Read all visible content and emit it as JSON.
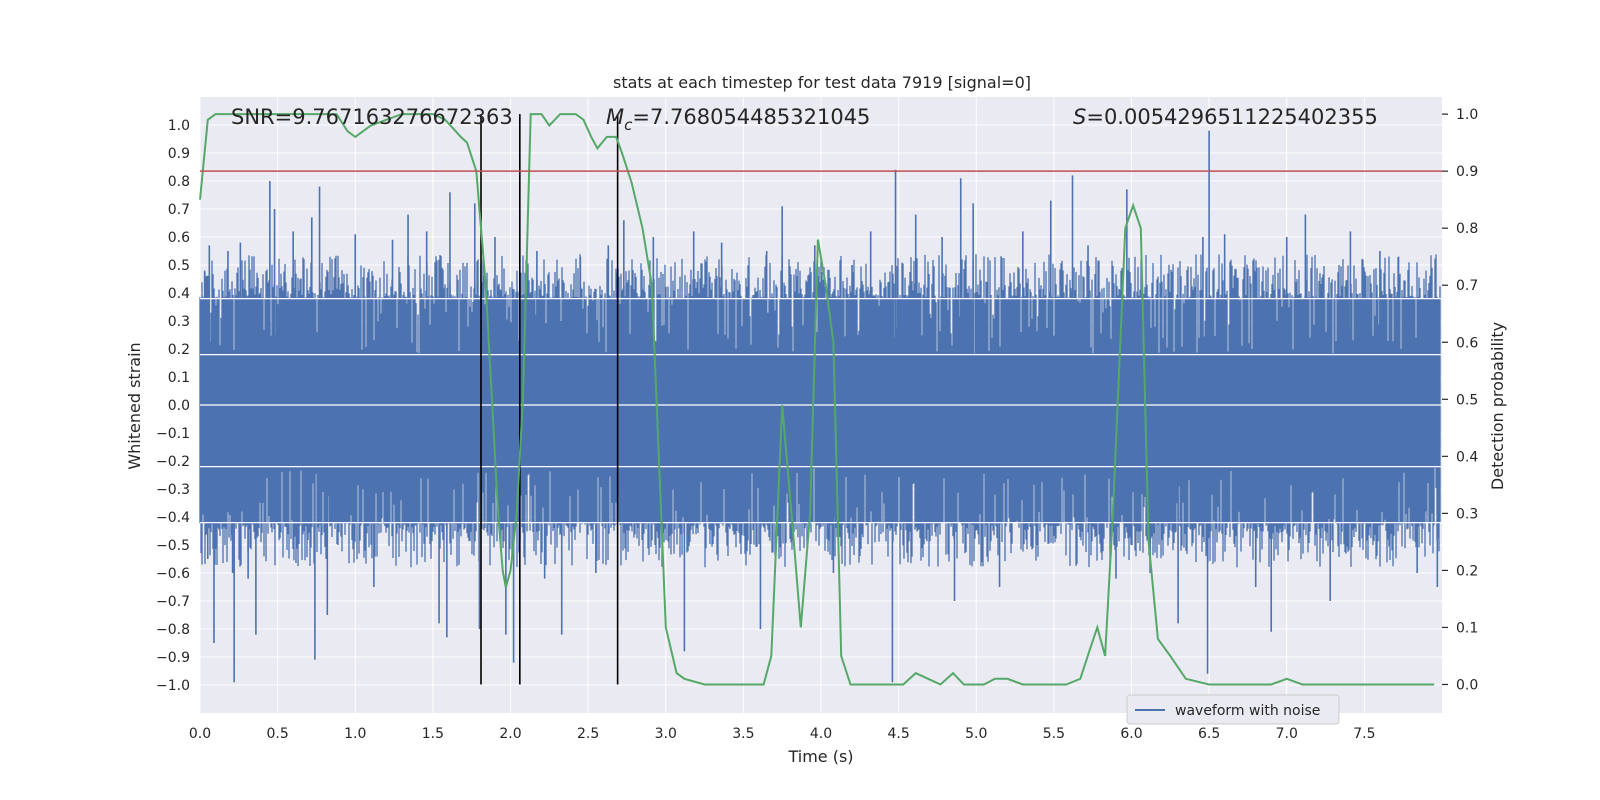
{
  "chart_data": {
    "type": "line",
    "title": "stats at each timestep for test data 7919 [signal=0]",
    "xlabel": "Time (s)",
    "ylabel": "Whitened strain",
    "y2label": "Detection probability",
    "xlim": [
      0.0,
      8.0
    ],
    "ylim": [
      -1.1,
      1.1
    ],
    "y2lim": [
      -0.05,
      1.03
    ],
    "x_ticks": [
      0.0,
      0.5,
      1.0,
      1.5,
      2.0,
      2.5,
      3.0,
      3.5,
      4.0,
      4.5,
      5.0,
      5.5,
      6.0,
      6.5,
      7.0,
      7.5
    ],
    "x_tick_labels": [
      "0.0",
      "0.5",
      "1.0",
      "1.5",
      "2.0",
      "2.5",
      "3.0",
      "3.5",
      "4.0",
      "4.5",
      "5.0",
      "5.5",
      "6.0",
      "6.5",
      "7.0",
      "7.5"
    ],
    "y_ticks": [
      1.0,
      0.9,
      0.8,
      0.7,
      0.6,
      0.5,
      0.4,
      0.3,
      0.2,
      0.1,
      0.0,
      -0.1,
      -0.2,
      -0.3,
      -0.4,
      -0.5,
      -0.6,
      -0.7,
      -0.8,
      -0.9,
      -1.0
    ],
    "y_tick_labels": [
      "1.0",
      "0.9",
      "0.8",
      "0.7",
      "0.6",
      "0.5",
      "0.4",
      "0.3",
      "0.2",
      "0.1",
      "0.0",
      "−0.1",
      "−0.2",
      "−0.3",
      "−0.4",
      "−0.5",
      "−0.6",
      "−0.7",
      "−0.8",
      "−0.9",
      "−1.0"
    ],
    "y2_ticks": [
      1.0,
      0.9,
      0.8,
      0.7,
      0.6,
      0.5,
      0.4,
      0.3,
      0.2,
      0.1,
      0.0
    ],
    "y2_tick_labels": [
      "1.0",
      "0.9",
      "0.8",
      "0.7",
      "0.6",
      "0.5",
      "0.4",
      "0.3",
      "0.2",
      "0.1",
      "0.0"
    ],
    "annotations": {
      "snr": "SNR=9.767163276672363",
      "mc_symbol": "M",
      "mc_sub": "c",
      "mc_value": "=7.768054485321045",
      "s_symbol": "S",
      "s_value": "=0.0054296511225402355"
    },
    "legend": {
      "label": "waveform with noise",
      "placement": "lower-right"
    },
    "threshold": {
      "y2": 0.9,
      "color": "#c44e52"
    },
    "vlines_x": [
      1.81,
      2.06,
      2.69
    ],
    "waveform": {
      "name": "waveform with noise",
      "color": "#4c72b0",
      "x_range": [
        0.0,
        7.99
      ],
      "band_env": [
        0.38,
        -0.42
      ],
      "core_env": [
        0.18,
        -0.22
      ],
      "spikes": [
        {
          "x": 0.03,
          "v": 0.48
        },
        {
          "x": 0.05,
          "v": -0.55
        },
        {
          "x": 0.06,
          "v": 0.57
        },
        {
          "x": 0.09,
          "v": -0.85
        },
        {
          "x": 0.18,
          "v": 0.55
        },
        {
          "x": 0.21,
          "v": -0.6
        },
        {
          "x": 0.22,
          "v": -0.99
        },
        {
          "x": 0.26,
          "v": 0.58
        },
        {
          "x": 0.31,
          "v": -0.62
        },
        {
          "x": 0.36,
          "v": -0.82
        },
        {
          "x": 0.45,
          "v": 0.8
        },
        {
          "x": 0.48,
          "v": 0.7
        },
        {
          "x": 0.6,
          "v": 0.62
        },
        {
          "x": 0.72,
          "v": 0.67
        },
        {
          "x": 0.74,
          "v": -0.91
        },
        {
          "x": 0.77,
          "v": 0.78
        },
        {
          "x": 0.82,
          "v": -0.75
        },
        {
          "x": 1.0,
          "v": 0.61
        },
        {
          "x": 1.12,
          "v": -0.65
        },
        {
          "x": 1.24,
          "v": 0.59
        },
        {
          "x": 1.34,
          "v": 0.68
        },
        {
          "x": 1.46,
          "v": 0.62
        },
        {
          "x": 1.54,
          "v": -0.78
        },
        {
          "x": 1.59,
          "v": -0.83
        },
        {
          "x": 1.61,
          "v": 0.76
        },
        {
          "x": 1.77,
          "v": 0.72
        },
        {
          "x": 1.8,
          "v": -0.8
        },
        {
          "x": 1.9,
          "v": 0.6
        },
        {
          "x": 1.97,
          "v": -0.82
        },
        {
          "x": 2.02,
          "v": -0.92
        },
        {
          "x": 2.17,
          "v": 0.55
        },
        {
          "x": 2.22,
          "v": -0.62
        },
        {
          "x": 2.33,
          "v": -0.82
        },
        {
          "x": 2.45,
          "v": 0.53
        },
        {
          "x": 2.55,
          "v": -0.6
        },
        {
          "x": 2.63,
          "v": 0.57
        },
        {
          "x": 2.73,
          "v": 0.66
        },
        {
          "x": 2.92,
          "v": 0.6
        },
        {
          "x": 3.12,
          "v": -0.88
        },
        {
          "x": 3.18,
          "v": 0.62
        },
        {
          "x": 3.36,
          "v": 0.58
        },
        {
          "x": 3.61,
          "v": -0.8
        },
        {
          "x": 3.65,
          "v": 0.55
        },
        {
          "x": 3.75,
          "v": 0.71
        },
        {
          "x": 3.96,
          "v": 0.57
        },
        {
          "x": 4.08,
          "v": -0.6
        },
        {
          "x": 4.2,
          "v": 0.5
        },
        {
          "x": 4.32,
          "v": 0.62
        },
        {
          "x": 4.48,
          "v": 0.84
        },
        {
          "x": 4.46,
          "v": -0.99
        },
        {
          "x": 4.61,
          "v": 0.68
        },
        {
          "x": 4.78,
          "v": 0.6
        },
        {
          "x": 4.86,
          "v": -0.7
        },
        {
          "x": 4.9,
          "v": 0.81
        },
        {
          "x": 4.98,
          "v": 0.72
        },
        {
          "x": 5.15,
          "v": -0.65
        },
        {
          "x": 5.3,
          "v": 0.62
        },
        {
          "x": 5.48,
          "v": 0.73
        },
        {
          "x": 5.62,
          "v": 0.82
        },
        {
          "x": 5.72,
          "v": 0.57
        },
        {
          "x": 5.9,
          "v": -0.62
        },
        {
          "x": 5.97,
          "v": 0.77
        },
        {
          "x": 6.12,
          "v": -0.6
        },
        {
          "x": 6.3,
          "v": -0.78
        },
        {
          "x": 6.46,
          "v": 0.6
        },
        {
          "x": 6.5,
          "v": 0.98
        },
        {
          "x": 6.49,
          "v": -0.96
        },
        {
          "x": 6.6,
          "v": 0.61
        },
        {
          "x": 6.8,
          "v": -0.65
        },
        {
          "x": 6.9,
          "v": -0.81
        },
        {
          "x": 7.0,
          "v": 0.6
        },
        {
          "x": 7.12,
          "v": 0.68
        },
        {
          "x": 7.28,
          "v": -0.7
        },
        {
          "x": 7.41,
          "v": 0.62
        },
        {
          "x": 7.6,
          "v": 0.55
        },
        {
          "x": 7.72,
          "v": 0.53
        },
        {
          "x": 7.84,
          "v": -0.6
        },
        {
          "x": 7.97,
          "v": -0.65
        }
      ]
    },
    "probability": {
      "name": "detection probability",
      "color": "#55a868",
      "x": [
        0.0,
        0.05,
        0.1,
        0.15,
        0.2,
        0.3,
        0.4,
        0.5,
        0.6,
        0.7,
        0.78,
        0.88,
        0.95,
        1.0,
        1.1,
        1.2,
        1.3,
        1.4,
        1.5,
        1.58,
        1.68,
        1.72,
        1.78,
        1.84,
        1.88,
        1.92,
        1.95,
        1.97,
        2.0,
        2.04,
        2.08,
        2.13,
        2.2,
        2.25,
        2.32,
        2.38,
        2.42,
        2.47,
        2.52,
        2.56,
        2.62,
        2.68,
        2.72,
        2.78,
        2.85,
        2.91,
        3.0,
        3.07,
        3.12,
        3.25,
        3.35,
        3.5,
        3.55,
        3.63,
        3.68,
        3.75,
        3.81,
        3.87,
        3.93,
        3.98,
        4.03,
        4.08,
        4.13,
        4.19,
        4.25,
        4.35,
        4.46,
        4.53,
        4.61,
        4.69,
        4.77,
        4.85,
        4.92,
        4.98,
        5.05,
        5.12,
        5.2,
        5.3,
        5.4,
        5.5,
        5.58,
        5.67,
        5.73,
        5.78,
        5.83,
        5.88,
        5.92,
        5.96,
        6.01,
        6.06,
        6.11,
        6.17,
        6.25,
        6.35,
        6.5,
        6.7,
        6.9,
        7.0,
        7.1,
        7.3,
        7.5,
        7.7,
        7.95
      ],
      "y": [
        0.85,
        0.99,
        1.0,
        1.0,
        1.0,
        1.0,
        1.0,
        1.0,
        1.0,
        1.0,
        1.0,
        1.0,
        0.97,
        0.96,
        0.98,
        0.99,
        1.0,
        1.0,
        1.0,
        0.99,
        0.96,
        0.95,
        0.9,
        0.7,
        0.5,
        0.3,
        0.2,
        0.17,
        0.2,
        0.3,
        0.5,
        1.0,
        1.0,
        0.98,
        1.0,
        1.0,
        1.0,
        0.99,
        0.96,
        0.94,
        0.96,
        0.96,
        0.93,
        0.88,
        0.8,
        0.7,
        0.1,
        0.02,
        0.01,
        0.0,
        0.0,
        0.0,
        0.0,
        0.0,
        0.05,
        0.49,
        0.3,
        0.1,
        0.3,
        0.78,
        0.7,
        0.6,
        0.05,
        0.0,
        0.0,
        0.0,
        0.0,
        0.0,
        0.02,
        0.01,
        0.0,
        0.02,
        0.0,
        0.0,
        0.0,
        0.01,
        0.01,
        0.0,
        0.0,
        0.0,
        0.0,
        0.01,
        0.06,
        0.1,
        0.05,
        0.3,
        0.55,
        0.8,
        0.84,
        0.8,
        0.25,
        0.08,
        0.05,
        0.01,
        0.0,
        0.0,
        0.0,
        0.01,
        0.0,
        0.0,
        0.0,
        0.0,
        0.0
      ]
    }
  }
}
